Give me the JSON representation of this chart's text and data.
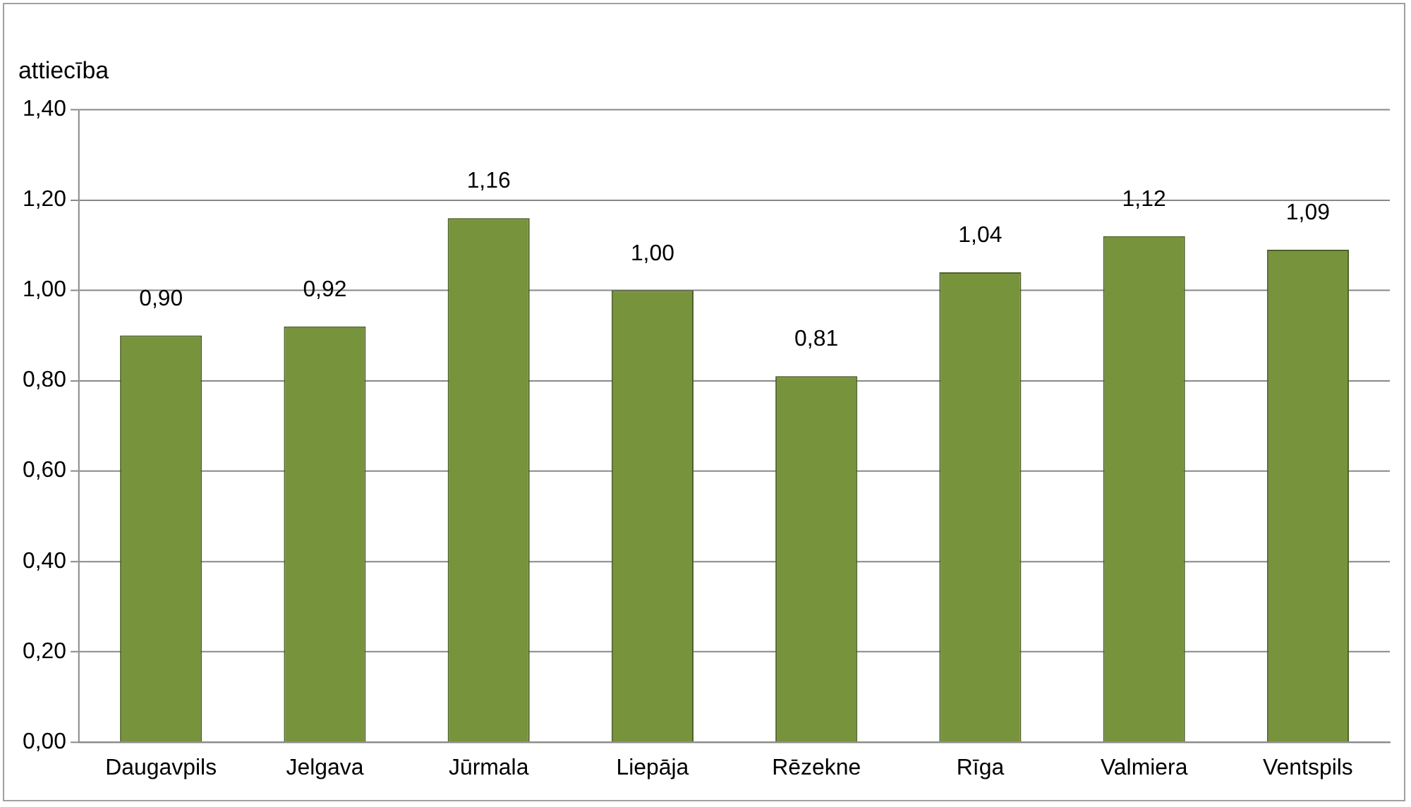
{
  "chart_data": {
    "type": "bar",
    "ylabel": "attiecība",
    "categories": [
      "Daugavpils",
      "Jelgava",
      "Jūrmala",
      "Liepāja",
      "Rēzekne",
      "Rīga",
      "Valmiera",
      "Ventspils"
    ],
    "values": [
      0.9,
      0.92,
      1.16,
      1.0,
      0.81,
      1.04,
      1.12,
      1.09
    ],
    "value_labels": [
      "0,90",
      "0,92",
      "1,16",
      "1,00",
      "0,81",
      "1,04",
      "1,12",
      "1,09"
    ],
    "color": "#77933c",
    "ylim": [
      0,
      1.4
    ],
    "yticks": [
      {
        "value": 0,
        "label": "0,00"
      },
      {
        "value": 0.2,
        "label": "0,20"
      },
      {
        "value": 0.4,
        "label": "0,40"
      },
      {
        "value": 0.6,
        "label": "0,60"
      },
      {
        "value": 0.8,
        "label": "0,80"
      },
      {
        "value": 1.0,
        "label": "1,00"
      },
      {
        "value": 1.2,
        "label": "1,20"
      },
      {
        "value": 1.4,
        "label": "1,40"
      }
    ],
    "grid": "y",
    "legend": false
  }
}
